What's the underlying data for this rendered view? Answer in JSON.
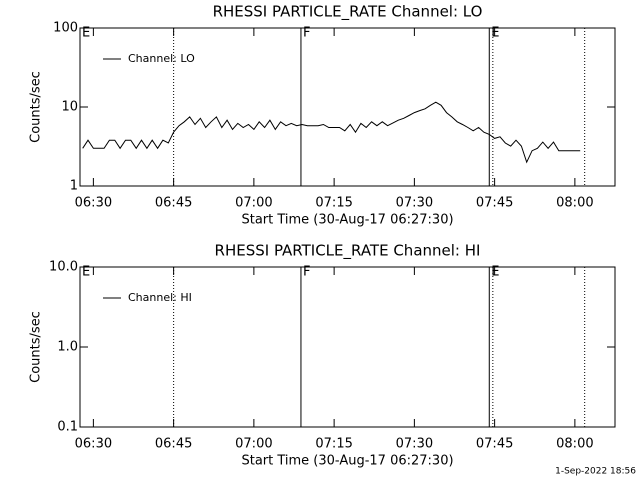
{
  "chart_data": [
    {
      "type": "line",
      "title": "RHESSI PARTICLE_RATE Channel: LO",
      "xlabel": "Start Time (30-Aug-17 06:27:30)",
      "ylabel": "Counts/sec",
      "log_y": true,
      "legend": "upper left",
      "xlim": [
        "06:27:30",
        "08:07:30"
      ],
      "xticks": [
        "06:30",
        "06:45",
        "07:00",
        "07:15",
        "07:30",
        "07:45",
        "08:00"
      ],
      "ylim": [
        1,
        100
      ],
      "yticks": [
        1,
        10,
        100
      ],
      "vlines": [
        {
          "x": "06:45:00",
          "style": "dotted"
        },
        {
          "x": "07:08:48",
          "style": "solid"
        },
        {
          "x": "07:44:00",
          "style": "solid"
        },
        {
          "x": "07:44:40",
          "style": "dotted"
        },
        {
          "x": "08:01:50",
          "style": "dotted"
        }
      ],
      "annotations": [
        {
          "text": "E",
          "x": "06:27:30"
        },
        {
          "text": "F",
          "x": "07:08:48"
        },
        {
          "text": "E",
          "x": "07:44:00"
        }
      ],
      "x": [
        "06:28",
        "06:29",
        "06:30",
        "06:31",
        "06:32",
        "06:33",
        "06:34",
        "06:35",
        "06:36",
        "06:37",
        "06:38",
        "06:39",
        "06:40",
        "06:41",
        "06:42",
        "06:43",
        "06:44",
        "06:45",
        "06:46",
        "06:47",
        "06:48",
        "06:49",
        "06:50",
        "06:51",
        "06:52",
        "06:53",
        "06:54",
        "06:55",
        "06:56",
        "06:57",
        "06:58",
        "06:59",
        "07:00",
        "07:01",
        "07:02",
        "07:03",
        "07:04",
        "07:05",
        "07:06",
        "07:07",
        "07:08",
        "07:09",
        "07:10",
        "07:11",
        "07:12",
        "07:13",
        "07:14",
        "07:15",
        "07:16",
        "07:17",
        "07:18",
        "07:19",
        "07:20",
        "07:21",
        "07:22",
        "07:23",
        "07:24",
        "07:25",
        "07:26",
        "07:27",
        "07:28",
        "07:29",
        "07:30",
        "07:31",
        "07:32",
        "07:33",
        "07:34",
        "07:35",
        "07:36",
        "07:37",
        "07:38",
        "07:39",
        "07:40",
        "07:41",
        "07:42",
        "07:43",
        "07:44",
        "07:45",
        "07:46",
        "07:47",
        "07:48",
        "07:49",
        "07:50",
        "07:51",
        "07:52",
        "07:53",
        "07:54",
        "07:55",
        "07:56",
        "07:57",
        "07:58",
        "07:59",
        "08:00",
        "08:01"
      ],
      "series": [
        {
          "name": "Channel: LO",
          "color": "#000000",
          "values": [
            3,
            3.8,
            3,
            3,
            3,
            3.8,
            3.8,
            3,
            3.8,
            3.8,
            3,
            3.8,
            3,
            3.8,
            3,
            3.8,
            3.5,
            4.8,
            5.8,
            6.5,
            7.5,
            6,
            7.2,
            5.5,
            6.5,
            7.5,
            5.5,
            6.8,
            5.2,
            6.2,
            5.5,
            6,
            5.2,
            6.5,
            5.5,
            6.8,
            5.2,
            6.5,
            5.8,
            6.2,
            5.8,
            6,
            5.8,
            5.8,
            5.8,
            6,
            5.5,
            5.5,
            5.5,
            5,
            6,
            4.8,
            6.2,
            5.5,
            6.5,
            5.8,
            6.5,
            5.8,
            6.3,
            6.8,
            7.2,
            7.8,
            8.5,
            9,
            9.5,
            10.5,
            11.5,
            10.5,
            8.5,
            7.5,
            6.5,
            6,
            5.5,
            5,
            5.5,
            4.8,
            4.5,
            4,
            4.2,
            3.5,
            3.2,
            3.8,
            3.2,
            2,
            2.8,
            3,
            3.6,
            3,
            3.6,
            2.8,
            2.8,
            2.8,
            2.8,
            2.8
          ]
        }
      ]
    },
    {
      "type": "line",
      "title": "RHESSI PARTICLE_RATE Channel: HI",
      "xlabel": "Start Time (30-Aug-17 06:27:30)",
      "ylabel": "Counts/sec",
      "log_y": true,
      "legend": "upper left",
      "xlim": [
        "06:27:30",
        "08:07:30"
      ],
      "xticks": [
        "06:30",
        "06:45",
        "07:00",
        "07:15",
        "07:30",
        "07:45",
        "08:00"
      ],
      "ylim": [
        0.1,
        10
      ],
      "yticks": [
        0.1,
        {
          "value": 1,
          "label": "1.0"
        },
        {
          "value": 10,
          "label": "10.0"
        }
      ],
      "vlines": [
        {
          "x": "06:45:00",
          "style": "dotted"
        },
        {
          "x": "07:08:48",
          "style": "solid"
        },
        {
          "x": "07:44:00",
          "style": "solid"
        },
        {
          "x": "07:44:40",
          "style": "dotted"
        },
        {
          "x": "08:01:50",
          "style": "dotted"
        }
      ],
      "annotations": [
        {
          "text": "E",
          "x": "06:27:30"
        },
        {
          "text": "F",
          "x": "07:08:48"
        },
        {
          "text": "E",
          "x": "07:44:00"
        }
      ],
      "x": [],
      "series": [
        {
          "name": "Channel: HI",
          "color": "#000000",
          "values": []
        }
      ]
    }
  ],
  "footer": "1-Sep-2022 18:56"
}
